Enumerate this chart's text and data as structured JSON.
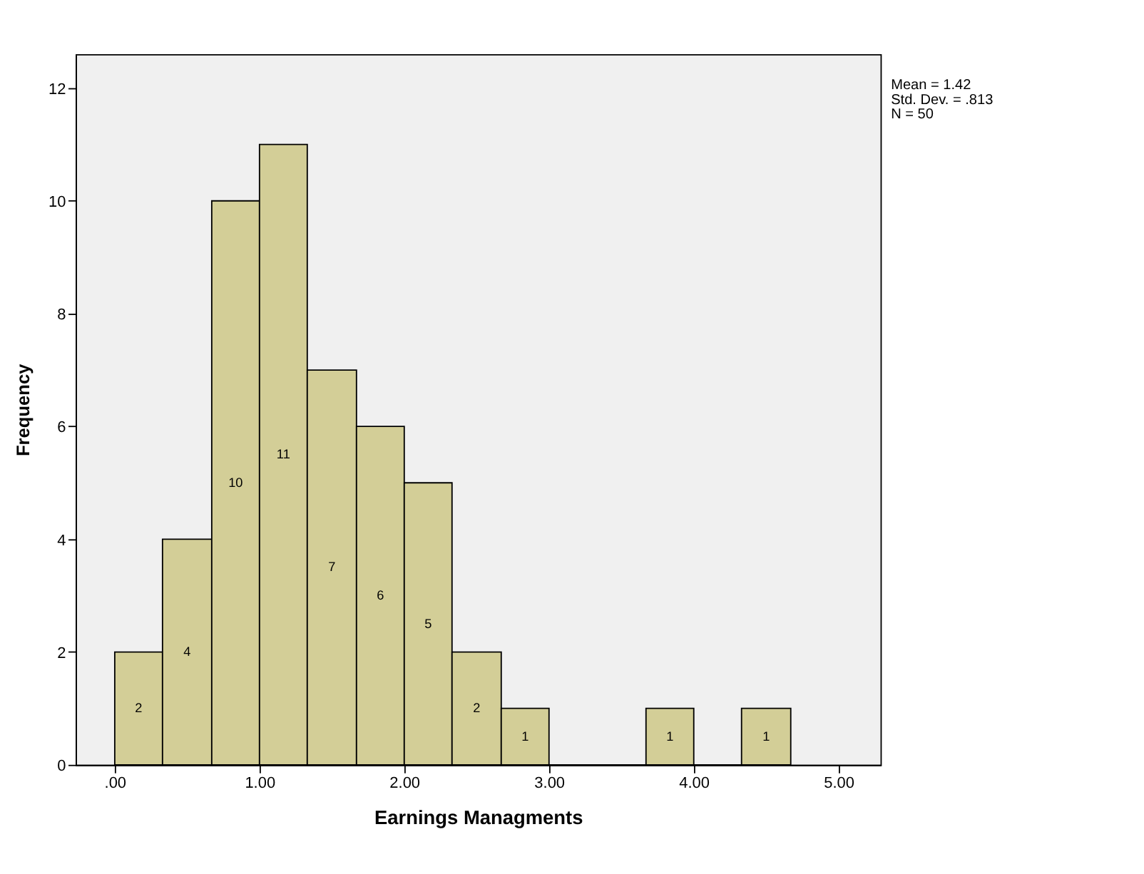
{
  "chart_data": {
    "type": "histogram",
    "xlabel": "Earnings Managments",
    "ylabel": "Frequency",
    "bins": [
      0,
      0.33,
      0.67,
      1,
      1.33,
      1.67,
      2,
      2.33,
      2.67,
      3,
      3.67,
      4,
      4.33,
      4.67
    ],
    "values": [
      2,
      4,
      10,
      11,
      7,
      6,
      5,
      2,
      1,
      0,
      1,
      0,
      1
    ],
    "value_labels": [
      "2",
      "4",
      "10",
      "11",
      "7",
      "6",
      "5",
      "2",
      "1",
      null,
      "1",
      null,
      "1"
    ],
    "color": "#d3ce97",
    "xlim": [
      -0.27,
      5.29
    ],
    "xticks": [
      {
        "value": 0,
        "label": ".00"
      },
      {
        "value": 1,
        "label": "1.00"
      },
      {
        "value": 2,
        "label": "2.00"
      },
      {
        "value": 3,
        "label": "3.00"
      },
      {
        "value": 4,
        "label": "4.00"
      },
      {
        "value": 5,
        "label": "5.00"
      }
    ],
    "ylim": [
      0,
      12.6
    ],
    "yticks": [
      0,
      2,
      4,
      6,
      8,
      10,
      12
    ],
    "grid": false,
    "annotations": [
      "Mean = 1.42",
      "Std. Dev. = .813",
      "N = 50"
    ]
  }
}
